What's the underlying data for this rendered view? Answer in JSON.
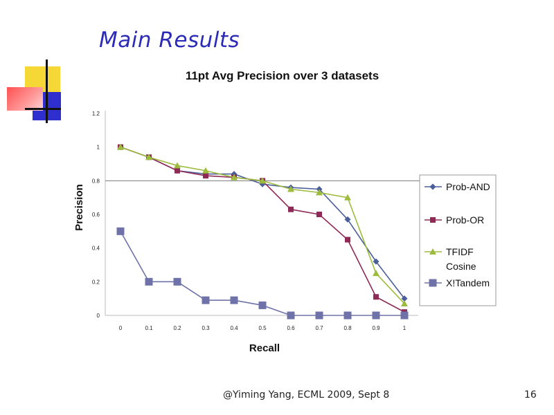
{
  "slide": {
    "title": "Main Results",
    "footer": "@Yiming Yang, ECML 2009, Sept 8",
    "page_number": "16"
  },
  "chart_data": {
    "type": "line",
    "title": "11pt Avg Precision over 3 datasets",
    "xlabel": "Recall",
    "ylabel": "Precision",
    "x": [
      0,
      0.1,
      0.2,
      0.3,
      0.4,
      0.5,
      0.6,
      0.7,
      0.8,
      0.9,
      1
    ],
    "x_tick_labels": [
      "0",
      "0.1",
      "0.2",
      "0.3",
      "0.4",
      "0.5",
      "0.6",
      "0.7",
      "0.8",
      "0.9",
      "1"
    ],
    "y_ticks": [
      0,
      0.2,
      0.4,
      0.6,
      0.8,
      1,
      1.2
    ],
    "y_tick_labels": [
      "0",
      "0.2",
      "0.4",
      "0.6",
      "0.8",
      "1",
      "1.2"
    ],
    "ylim": [
      0,
      1.2
    ],
    "grid": "horizontal line at 0.8",
    "legend_position": "right",
    "series": [
      {
        "name": "Prob-AND",
        "color": "#4a5e9a",
        "marker": "diamond",
        "values": [
          1.0,
          0.94,
          0.86,
          0.84,
          0.84,
          0.78,
          0.76,
          0.75,
          0.57,
          0.32,
          0.1
        ]
      },
      {
        "name": "Prob-OR",
        "color": "#8e2a55",
        "marker": "square",
        "values": [
          1.0,
          0.94,
          0.86,
          0.83,
          0.82,
          0.8,
          0.63,
          0.6,
          0.45,
          0.11,
          0.02
        ]
      },
      {
        "name": "TFIDF Cosine",
        "color": "#9dbb3c",
        "marker": "triangle",
        "values": [
          1.0,
          0.94,
          0.89,
          0.86,
          0.82,
          0.8,
          0.75,
          0.73,
          0.7,
          0.25,
          0.07
        ]
      },
      {
        "name": "X!Tandem",
        "color": "#6e72a8",
        "marker": "bigsquare",
        "values": [
          0.5,
          0.2,
          0.2,
          0.09,
          0.09,
          0.06,
          0.0,
          0.0,
          0.0,
          0.0,
          0.0
        ]
      }
    ],
    "legend": [
      {
        "label": "Prob-AND",
        "series": 0
      },
      {
        "label": "Prob-OR",
        "series": 1
      },
      {
        "label_lines": [
          "TFIDF",
          "Cosine"
        ],
        "series": 2
      },
      {
        "label": "X!Tandem",
        "series": 3
      }
    ]
  }
}
